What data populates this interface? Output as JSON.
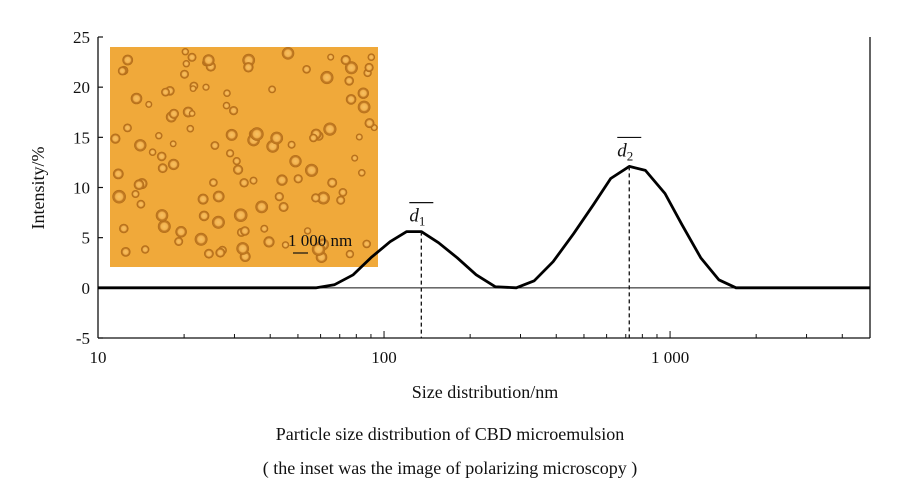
{
  "chart_data": {
    "type": "line",
    "xlabel": "Size distribution/nm",
    "ylabel": "Intensity/%",
    "x_scale": "log",
    "xlim": [
      10,
      5000
    ],
    "ylim": [
      -5,
      25
    ],
    "x_ticks": [
      {
        "value": 10,
        "label": "10"
      },
      {
        "value": 100,
        "label": "100"
      },
      {
        "value": 1000,
        "label": "1 000"
      }
    ],
    "y_ticks": [
      -5,
      0,
      5,
      10,
      15,
      20,
      25
    ],
    "grid": false,
    "series": [
      {
        "color": "#000000",
        "points": [
          [
            10,
            0
          ],
          [
            58,
            0
          ],
          [
            67,
            0.3
          ],
          [
            78,
            1.3
          ],
          [
            90,
            3.0
          ],
          [
            105,
            4.6
          ],
          [
            120,
            5.6
          ],
          [
            135,
            5.6
          ],
          [
            155,
            4.5
          ],
          [
            180,
            3.0
          ],
          [
            210,
            1.3
          ],
          [
            245,
            0.1
          ],
          [
            290,
            0
          ],
          [
            335,
            0.7
          ],
          [
            390,
            2.6
          ],
          [
            460,
            5.4
          ],
          [
            540,
            8.3
          ],
          [
            620,
            10.9
          ],
          [
            720,
            12.1
          ],
          [
            820,
            11.7
          ],
          [
            960,
            9.4
          ],
          [
            1100,
            6.3
          ],
          [
            1280,
            3.0
          ],
          [
            1480,
            0.8
          ],
          [
            1700,
            0
          ],
          [
            5000,
            0
          ]
        ]
      }
    ],
    "annotations": [
      {
        "label": "d",
        "subscript": "1",
        "x": 135,
        "y": 5.6
      },
      {
        "label": "d",
        "subscript": "2",
        "x": 720,
        "y": 12.1
      }
    ],
    "inset": {
      "image": "polarizing microscopy image of droplets",
      "background_color": "#f0a93a",
      "droplet_color": "#e0952a",
      "scale_bar_label": "1 000 nm"
    }
  },
  "caption": {
    "line1": "Particle size distribution of CBD microemulsion",
    "line2": "( the inset was the image of polarizing microscopy )"
  }
}
